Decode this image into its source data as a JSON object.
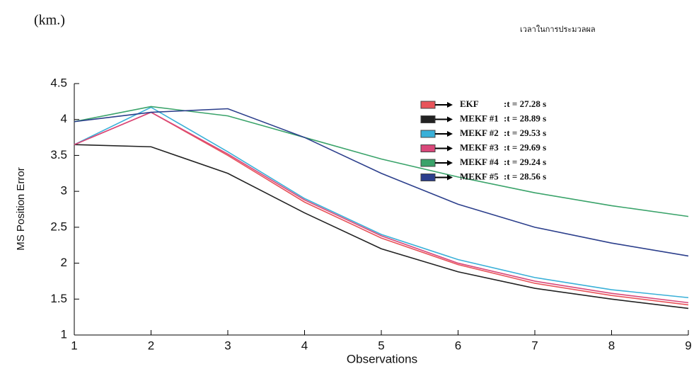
{
  "chart_data": {
    "type": "line",
    "unit_label": "(km.)",
    "legend_title": "เวลาในการประมวลผล",
    "x_label": "Observations",
    "y_label": "MS Position Error",
    "x": [
      1,
      2,
      3,
      4,
      5,
      6,
      7,
      8,
      9
    ],
    "series": [
      {
        "name": "EKF",
        "time": ":t = 27.28 s",
        "color": "#e8545a",
        "values": [
          3.65,
          4.1,
          3.5,
          2.85,
          2.35,
          1.98,
          1.72,
          1.55,
          1.42
        ]
      },
      {
        "name": "MEKF #1",
        "time": ":t = 28.89 s",
        "color": "#222222",
        "values": [
          3.65,
          3.62,
          3.25,
          2.7,
          2.2,
          1.88,
          1.65,
          1.5,
          1.37
        ]
      },
      {
        "name": "MEKF #2",
        "time": ":t = 29.53 s",
        "color": "#3ab0d8",
        "values": [
          3.65,
          4.17,
          3.55,
          2.9,
          2.4,
          2.05,
          1.8,
          1.63,
          1.52
        ]
      },
      {
        "name": "MEKF #3",
        "time": ":t = 29.69 s",
        "color": "#d9487a",
        "values": [
          3.65,
          4.1,
          3.52,
          2.88,
          2.38,
          2.0,
          1.75,
          1.58,
          1.45
        ]
      },
      {
        "name": "MEKF #4",
        "time": ":t = 29.24 s",
        "color": "#3aa36a",
        "values": [
          3.97,
          4.18,
          4.05,
          3.75,
          3.45,
          3.2,
          2.98,
          2.8,
          2.65
        ]
      },
      {
        "name": "MEKF #5",
        "time": ":t = 28.56 s",
        "color": "#2c3f8c",
        "values": [
          3.97,
          4.1,
          4.15,
          3.75,
          3.25,
          2.82,
          2.5,
          2.28,
          2.1
        ]
      }
    ],
    "xlim": [
      1,
      9
    ],
    "xticks": [
      1,
      2,
      3,
      4,
      5,
      6,
      7,
      8,
      9
    ],
    "ylim": [
      1,
      4.5
    ],
    "yticks": [
      1,
      1.5,
      2,
      2.5,
      3,
      3.5,
      4,
      4.5
    ],
    "grid": false
  }
}
